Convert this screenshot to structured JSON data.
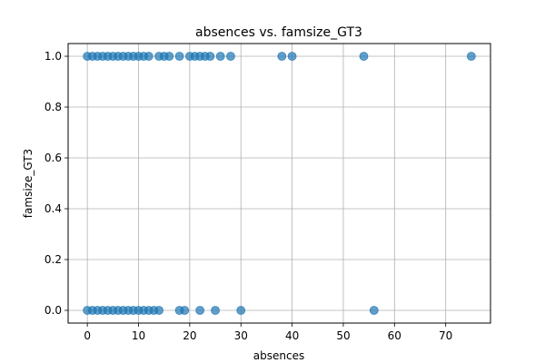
{
  "chart_data": {
    "type": "scatter",
    "title": "absences vs. famsize_GT3",
    "xlabel": "absences",
    "ylabel": "famsize_GT3",
    "xlim": [
      -3.75,
      78.75
    ],
    "ylim": [
      -0.05,
      1.05
    ],
    "xticks": [
      0,
      10,
      20,
      30,
      40,
      50,
      60,
      70
    ],
    "xtick_labels": [
      "0",
      "10",
      "20",
      "30",
      "40",
      "50",
      "60",
      "70"
    ],
    "yticks": [
      0.0,
      0.2,
      0.4,
      0.6,
      0.8,
      1.0
    ],
    "ytick_labels": [
      "0.0",
      "0.2",
      "0.4",
      "0.6",
      "0.8",
      "1.0"
    ],
    "grid": true,
    "marker_color": "#1f77b4",
    "marker_alpha": 0.7,
    "series": [
      {
        "x": [
          0,
          1,
          2,
          3,
          4,
          5,
          6,
          7,
          8,
          9,
          10,
          11,
          12,
          14,
          15,
          16,
          18,
          20,
          21,
          22,
          23,
          24,
          26,
          28,
          38,
          40,
          54,
          75
        ],
        "y": [
          1,
          1,
          1,
          1,
          1,
          1,
          1,
          1,
          1,
          1,
          1,
          1,
          1,
          1,
          1,
          1,
          1,
          1,
          1,
          1,
          1,
          1,
          1,
          1,
          1,
          1,
          1,
          1
        ]
      },
      {
        "x": [
          0,
          1,
          2,
          3,
          4,
          5,
          6,
          7,
          8,
          9,
          10,
          11,
          12,
          13,
          14,
          18,
          19,
          22,
          25,
          30,
          56
        ],
        "y": [
          0,
          0,
          0,
          0,
          0,
          0,
          0,
          0,
          0,
          0,
          0,
          0,
          0,
          0,
          0,
          0,
          0,
          0,
          0,
          0,
          0
        ]
      }
    ]
  }
}
